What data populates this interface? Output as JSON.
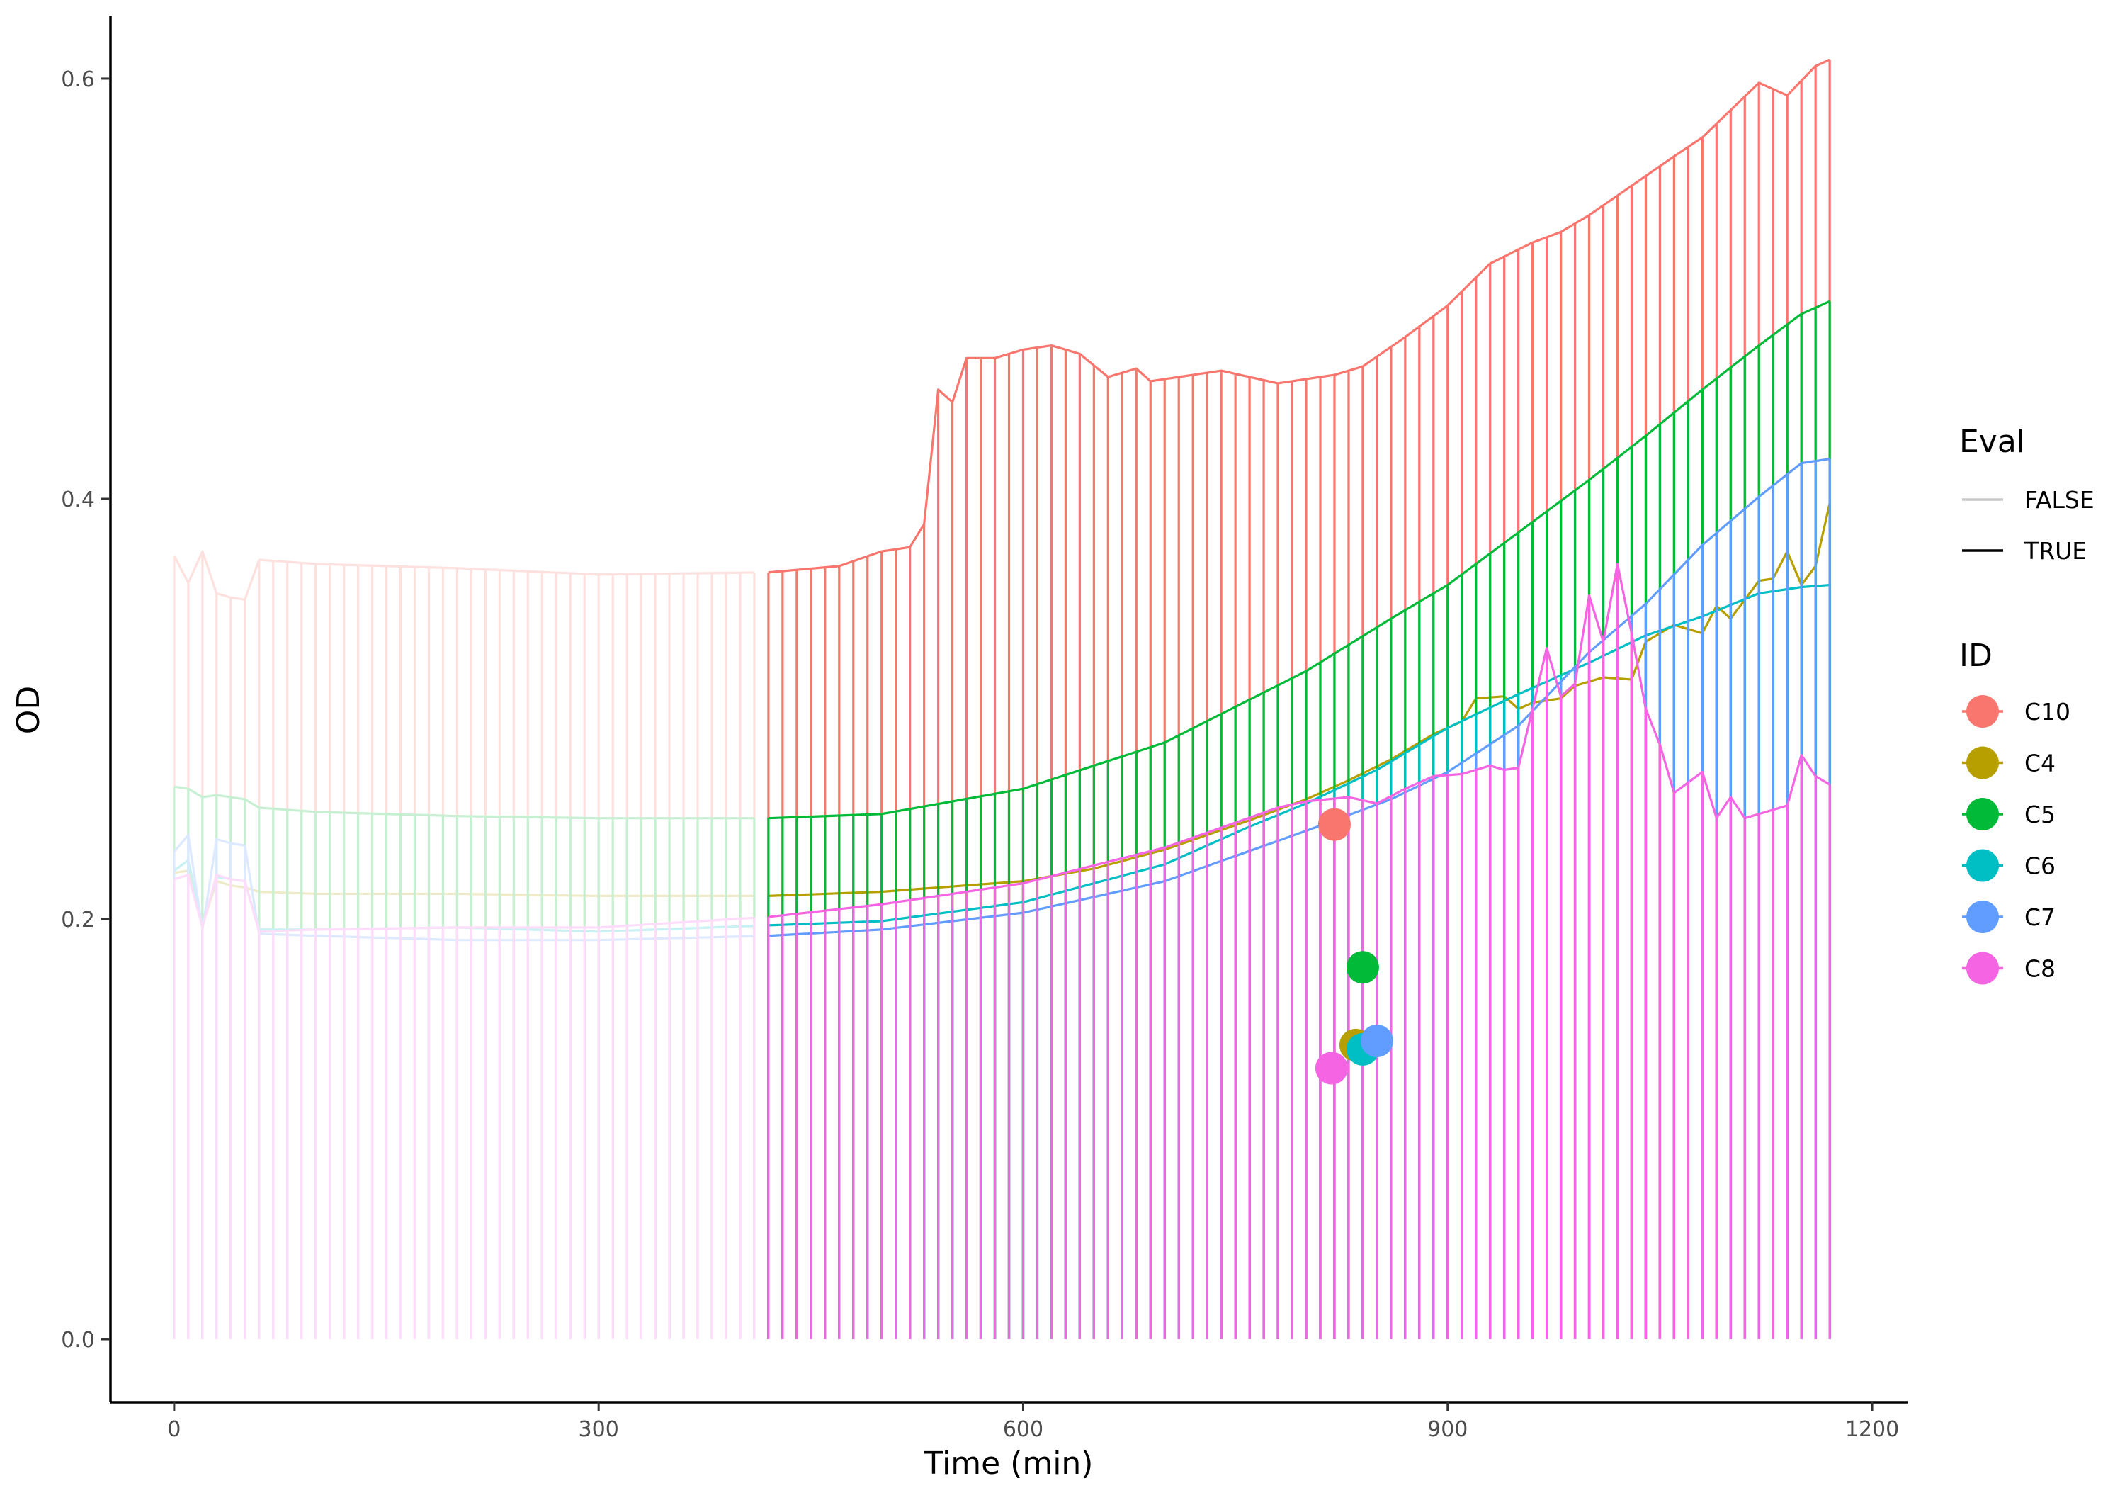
{
  "chart_data": {
    "type": "line",
    "xlabel": "Time (min)",
    "ylabel": "OD",
    "xlim": [
      -45,
      1225
    ],
    "ylim": [
      -0.03,
      0.63
    ],
    "xticks": [
      0,
      300,
      600,
      900,
      1200
    ],
    "yticks": [
      0.0,
      0.2,
      0.4,
      0.6
    ],
    "xtick_labels": [
      "0",
      "300",
      "600",
      "900",
      "1200"
    ],
    "ytick_labels": [
      "0.0",
      "0.2",
      "0.4",
      "0.6"
    ],
    "grid": false,
    "legend_position": "right",
    "legends": {
      "eval": {
        "title": "Eval",
        "entries": [
          {
            "label": "FALSE",
            "color": "#c8c8c8"
          },
          {
            "label": "TRUE",
            "color": "#000000"
          }
        ]
      },
      "id": {
        "title": "ID",
        "entries": [
          {
            "label": "C10",
            "color": "#F8766D"
          },
          {
            "label": "C4",
            "color": "#B79F00"
          },
          {
            "label": "C5",
            "color": "#00BA38"
          },
          {
            "label": "C6",
            "color": "#00BFC4"
          },
          {
            "label": "C7",
            "color": "#619CFF"
          },
          {
            "label": "C8",
            "color": "#F564E3"
          }
        ]
      }
    },
    "eval_switch_x": 420,
    "x_step": 10,
    "x_end": 1170,
    "series": [
      {
        "name": "C10",
        "color": "#F8766D",
        "knots": [
          [
            0,
            0.373
          ],
          [
            10,
            0.36
          ],
          [
            20,
            0.375
          ],
          [
            30,
            0.355
          ],
          [
            40,
            0.353
          ],
          [
            50,
            0.352
          ],
          [
            60,
            0.371
          ],
          [
            100,
            0.369
          ],
          [
            200,
            0.367
          ],
          [
            300,
            0.364
          ],
          [
            420,
            0.365
          ],
          [
            470,
            0.368
          ],
          [
            500,
            0.375
          ],
          [
            520,
            0.377
          ],
          [
            530,
            0.388
          ],
          [
            540,
            0.452
          ],
          [
            550,
            0.446
          ],
          [
            560,
            0.467
          ],
          [
            580,
            0.467
          ],
          [
            600,
            0.471
          ],
          [
            620,
            0.473
          ],
          [
            640,
            0.469
          ],
          [
            660,
            0.458
          ],
          [
            680,
            0.462
          ],
          [
            690,
            0.456
          ],
          [
            710,
            0.458
          ],
          [
            740,
            0.461
          ],
          [
            760,
            0.458
          ],
          [
            780,
            0.455
          ],
          [
            820,
            0.459
          ],
          [
            840,
            0.463
          ],
          [
            870,
            0.477
          ],
          [
            900,
            0.492
          ],
          [
            930,
            0.512
          ],
          [
            960,
            0.522
          ],
          [
            980,
            0.527
          ],
          [
            1000,
            0.535
          ],
          [
            1030,
            0.549
          ],
          [
            1060,
            0.563
          ],
          [
            1080,
            0.572
          ],
          [
            1100,
            0.585
          ],
          [
            1120,
            0.598
          ],
          [
            1140,
            0.592
          ],
          [
            1160,
            0.606
          ],
          [
            1170,
            0.609
          ]
        ]
      },
      {
        "name": "C4",
        "color": "#B79F00",
        "knots": [
          [
            0,
            0.222
          ],
          [
            10,
            0.223
          ],
          [
            20,
            0.197
          ],
          [
            30,
            0.218
          ],
          [
            40,
            0.216
          ],
          [
            50,
            0.215
          ],
          [
            60,
            0.213
          ],
          [
            100,
            0.212
          ],
          [
            200,
            0.212
          ],
          [
            300,
            0.211
          ],
          [
            420,
            0.211
          ],
          [
            500,
            0.213
          ],
          [
            600,
            0.218
          ],
          [
            650,
            0.224
          ],
          [
            700,
            0.233
          ],
          [
            760,
            0.247
          ],
          [
            800,
            0.257
          ],
          [
            830,
            0.266
          ],
          [
            860,
            0.276
          ],
          [
            890,
            0.288
          ],
          [
            910,
            0.294
          ],
          [
            920,
            0.305
          ],
          [
            940,
            0.306
          ],
          [
            950,
            0.3
          ],
          [
            960,
            0.303
          ],
          [
            980,
            0.305
          ],
          [
            990,
            0.311
          ],
          [
            1010,
            0.315
          ],
          [
            1030,
            0.314
          ],
          [
            1040,
            0.332
          ],
          [
            1060,
            0.34
          ],
          [
            1080,
            0.336
          ],
          [
            1090,
            0.349
          ],
          [
            1100,
            0.343
          ],
          [
            1120,
            0.361
          ],
          [
            1130,
            0.362
          ],
          [
            1140,
            0.375
          ],
          [
            1150,
            0.359
          ],
          [
            1160,
            0.368
          ],
          [
            1170,
            0.398
          ]
        ]
      },
      {
        "name": "C5",
        "color": "#00BA38",
        "knots": [
          [
            0,
            0.263
          ],
          [
            10,
            0.262
          ],
          [
            20,
            0.258
          ],
          [
            30,
            0.259
          ],
          [
            40,
            0.258
          ],
          [
            50,
            0.257
          ],
          [
            60,
            0.253
          ],
          [
            100,
            0.251
          ],
          [
            200,
            0.249
          ],
          [
            300,
            0.248
          ],
          [
            420,
            0.248
          ],
          [
            500,
            0.25
          ],
          [
            600,
            0.262
          ],
          [
            700,
            0.284
          ],
          [
            800,
            0.318
          ],
          [
            860,
            0.343
          ],
          [
            900,
            0.359
          ],
          [
            950,
            0.384
          ],
          [
            1000,
            0.409
          ],
          [
            1040,
            0.43
          ],
          [
            1080,
            0.452
          ],
          [
            1120,
            0.473
          ],
          [
            1150,
            0.488
          ],
          [
            1170,
            0.494
          ]
        ]
      },
      {
        "name": "C6",
        "color": "#00BFC4",
        "knots": [
          [
            0,
            0.223
          ],
          [
            10,
            0.228
          ],
          [
            20,
            0.197
          ],
          [
            30,
            0.22
          ],
          [
            40,
            0.219
          ],
          [
            50,
            0.218
          ],
          [
            60,
            0.195
          ],
          [
            100,
            0.195
          ],
          [
            200,
            0.196
          ],
          [
            300,
            0.194
          ],
          [
            420,
            0.197
          ],
          [
            500,
            0.199
          ],
          [
            600,
            0.208
          ],
          [
            700,
            0.226
          ],
          [
            760,
            0.244
          ],
          [
            800,
            0.255
          ],
          [
            850,
            0.271
          ],
          [
            900,
            0.291
          ],
          [
            950,
            0.307
          ],
          [
            1000,
            0.322
          ],
          [
            1040,
            0.335
          ],
          [
            1080,
            0.344
          ],
          [
            1120,
            0.355
          ],
          [
            1150,
            0.358
          ],
          [
            1170,
            0.359
          ]
        ]
      },
      {
        "name": "C7",
        "color": "#619CFF",
        "knots": [
          [
            0,
            0.232
          ],
          [
            10,
            0.24
          ],
          [
            20,
            0.195
          ],
          [
            30,
            0.238
          ],
          [
            40,
            0.236
          ],
          [
            50,
            0.235
          ],
          [
            60,
            0.193
          ],
          [
            100,
            0.192
          ],
          [
            200,
            0.19
          ],
          [
            300,
            0.19
          ],
          [
            420,
            0.192
          ],
          [
            500,
            0.195
          ],
          [
            600,
            0.203
          ],
          [
            700,
            0.218
          ],
          [
            800,
            0.242
          ],
          [
            860,
            0.257
          ],
          [
            900,
            0.27
          ],
          [
            950,
            0.292
          ],
          [
            1000,
            0.327
          ],
          [
            1040,
            0.35
          ],
          [
            1080,
            0.378
          ],
          [
            1120,
            0.401
          ],
          [
            1150,
            0.417
          ],
          [
            1170,
            0.419
          ]
        ]
      },
      {
        "name": "C8",
        "color": "#F564E3",
        "knots": [
          [
            0,
            0.219
          ],
          [
            10,
            0.221
          ],
          [
            20,
            0.196
          ],
          [
            30,
            0.221
          ],
          [
            40,
            0.219
          ],
          [
            50,
            0.218
          ],
          [
            60,
            0.194
          ],
          [
            100,
            0.195
          ],
          [
            200,
            0.196
          ],
          [
            300,
            0.196
          ],
          [
            420,
            0.201
          ],
          [
            500,
            0.207
          ],
          [
            600,
            0.217
          ],
          [
            700,
            0.234
          ],
          [
            780,
            0.253
          ],
          [
            800,
            0.256
          ],
          [
            830,
            0.258
          ],
          [
            850,
            0.255
          ],
          [
            870,
            0.262
          ],
          [
            890,
            0.268
          ],
          [
            910,
            0.269
          ],
          [
            920,
            0.271
          ],
          [
            930,
            0.273
          ],
          [
            940,
            0.271
          ],
          [
            950,
            0.272
          ],
          [
            960,
            0.3
          ],
          [
            970,
            0.329
          ],
          [
            980,
            0.306
          ],
          [
            990,
            0.312
          ],
          [
            1000,
            0.354
          ],
          [
            1010,
            0.332
          ],
          [
            1020,
            0.369
          ],
          [
            1030,
            0.336
          ],
          [
            1040,
            0.3
          ],
          [
            1050,
            0.283
          ],
          [
            1060,
            0.26
          ],
          [
            1080,
            0.27
          ],
          [
            1090,
            0.248
          ],
          [
            1100,
            0.258
          ],
          [
            1110,
            0.248
          ],
          [
            1120,
            0.25
          ],
          [
            1140,
            0.254
          ],
          [
            1150,
            0.278
          ],
          [
            1160,
            0.268
          ],
          [
            1170,
            0.264
          ]
        ]
      }
    ],
    "points": [
      {
        "id": "C10",
        "x": 820,
        "y": 0.245
      },
      {
        "id": "C4",
        "x": 835,
        "y": 0.14
      },
      {
        "id": "C5",
        "x": 840,
        "y": 0.177
      },
      {
        "id": "C6",
        "x": 840,
        "y": 0.138
      },
      {
        "id": "C7",
        "x": 850,
        "y": 0.142
      },
      {
        "id": "C8",
        "x": 818,
        "y": 0.129
      }
    ]
  }
}
